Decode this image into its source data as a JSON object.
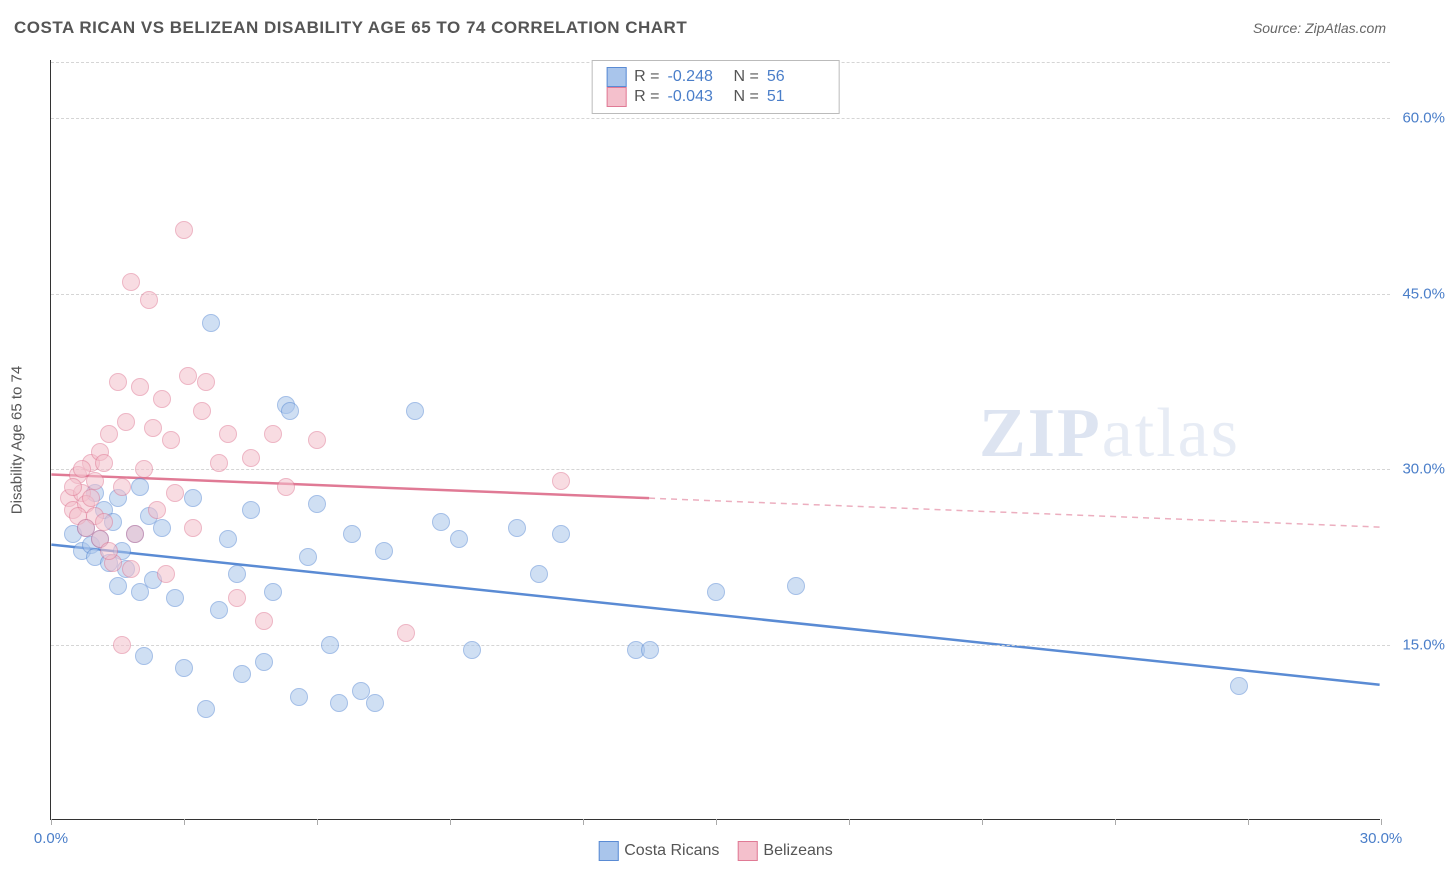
{
  "title": "COSTA RICAN VS BELIZEAN DISABILITY AGE 65 TO 74 CORRELATION CHART",
  "source": "Source: ZipAtlas.com",
  "ylabel": "Disability Age 65 to 74",
  "watermark_a": "ZIP",
  "watermark_b": "atlas",
  "chart": {
    "type": "scatter",
    "xlim": [
      0,
      30
    ],
    "ylim": [
      0,
      65
    ],
    "xticks": [
      0,
      3,
      6,
      9,
      12,
      15,
      18,
      21,
      24,
      27,
      30
    ],
    "xtick_labels": {
      "0": "0.0%",
      "30": "30.0%"
    },
    "yticks": [
      15,
      30,
      45,
      60
    ],
    "ytick_labels": {
      "15": "15.0%",
      "30": "30.0%",
      "45": "45.0%",
      "60": "60.0%"
    },
    "grid_color": "#d5d5d5",
    "background_color": "#ffffff",
    "point_radius": 9,
    "point_opacity": 0.55,
    "axis_label_color": "#4a7ec9",
    "series": [
      {
        "name": "Costa Ricans",
        "fill": "#a9c5eb",
        "stroke": "#5a8bd4",
        "trend": {
          "y_at_x0": 23.5,
          "y_at_x30": 11.5,
          "x_solid_end": 30
        },
        "R": "-0.248",
        "N": "56",
        "points": [
          [
            0.5,
            24.5
          ],
          [
            0.7,
            23.0
          ],
          [
            0.8,
            25.0
          ],
          [
            0.9,
            23.5
          ],
          [
            1.0,
            22.5
          ],
          [
            1.1,
            24.0
          ],
          [
            1.2,
            26.5
          ],
          [
            1.3,
            22.0
          ],
          [
            1.4,
            25.5
          ],
          [
            1.5,
            27.5
          ],
          [
            1.6,
            23.0
          ],
          [
            1.7,
            21.5
          ],
          [
            1.9,
            24.5
          ],
          [
            2.0,
            19.5
          ],
          [
            2.1,
            14.0
          ],
          [
            2.2,
            26.0
          ],
          [
            2.3,
            20.5
          ],
          [
            2.5,
            25.0
          ],
          [
            2.8,
            19.0
          ],
          [
            3.0,
            13.0
          ],
          [
            3.2,
            27.5
          ],
          [
            3.5,
            9.5
          ],
          [
            3.6,
            42.5
          ],
          [
            3.8,
            18.0
          ],
          [
            4.0,
            24.0
          ],
          [
            4.2,
            21.0
          ],
          [
            4.3,
            12.5
          ],
          [
            4.5,
            26.5
          ],
          [
            4.8,
            13.5
          ],
          [
            5.0,
            19.5
          ],
          [
            5.3,
            35.5
          ],
          [
            5.4,
            35.0
          ],
          [
            5.6,
            10.5
          ],
          [
            5.8,
            22.5
          ],
          [
            6.0,
            27.0
          ],
          [
            6.3,
            15.0
          ],
          [
            6.5,
            10.0
          ],
          [
            6.8,
            24.5
          ],
          [
            7.0,
            11.0
          ],
          [
            7.3,
            10.0
          ],
          [
            7.5,
            23.0
          ],
          [
            8.2,
            35.0
          ],
          [
            8.8,
            25.5
          ],
          [
            9.2,
            24.0
          ],
          [
            9.5,
            14.5
          ],
          [
            10.5,
            25.0
          ],
          [
            11.0,
            21.0
          ],
          [
            11.5,
            24.5
          ],
          [
            13.2,
            14.5
          ],
          [
            13.5,
            14.5
          ],
          [
            15.0,
            19.5
          ],
          [
            16.8,
            20.0
          ],
          [
            26.8,
            11.5
          ],
          [
            1.0,
            28.0
          ],
          [
            2.0,
            28.5
          ],
          [
            1.5,
            20.0
          ]
        ]
      },
      {
        "name": "Belizeans",
        "fill": "#f4c0cc",
        "stroke": "#e07a95",
        "trend": {
          "y_at_x0": 29.5,
          "y_at_x30": 25.0,
          "x_solid_end": 13.5
        },
        "R": "-0.043",
        "N": "51",
        "points": [
          [
            0.4,
            27.5
          ],
          [
            0.5,
            26.5
          ],
          [
            0.6,
            29.5
          ],
          [
            0.7,
            28.0
          ],
          [
            0.8,
            27.0
          ],
          [
            0.9,
            30.5
          ],
          [
            1.0,
            26.0
          ],
          [
            1.1,
            31.5
          ],
          [
            1.2,
            25.5
          ],
          [
            1.3,
            33.0
          ],
          [
            1.4,
            22.0
          ],
          [
            1.5,
            37.5
          ],
          [
            1.6,
            28.5
          ],
          [
            1.7,
            34.0
          ],
          [
            1.8,
            46.0
          ],
          [
            1.9,
            24.5
          ],
          [
            2.0,
            37.0
          ],
          [
            2.1,
            30.0
          ],
          [
            2.2,
            44.5
          ],
          [
            2.3,
            33.5
          ],
          [
            2.4,
            26.5
          ],
          [
            2.5,
            36.0
          ],
          [
            2.6,
            21.0
          ],
          [
            2.7,
            32.5
          ],
          [
            2.8,
            28.0
          ],
          [
            3.0,
            50.5
          ],
          [
            3.1,
            38.0
          ],
          [
            3.2,
            25.0
          ],
          [
            3.4,
            35.0
          ],
          [
            3.5,
            37.5
          ],
          [
            3.8,
            30.5
          ],
          [
            4.0,
            33.0
          ],
          [
            4.2,
            19.0
          ],
          [
            4.5,
            31.0
          ],
          [
            4.8,
            17.0
          ],
          [
            5.0,
            33.0
          ],
          [
            5.3,
            28.5
          ],
          [
            6.0,
            32.5
          ],
          [
            8.0,
            16.0
          ],
          [
            11.5,
            29.0
          ],
          [
            0.5,
            28.5
          ],
          [
            0.6,
            26.0
          ],
          [
            0.7,
            30.0
          ],
          [
            0.8,
            25.0
          ],
          [
            0.9,
            27.5
          ],
          [
            1.0,
            29.0
          ],
          [
            1.1,
            24.0
          ],
          [
            1.2,
            30.5
          ],
          [
            1.3,
            23.0
          ],
          [
            1.6,
            15.0
          ],
          [
            1.8,
            21.5
          ]
        ]
      }
    ]
  },
  "legend_top": [
    {
      "series": 0,
      "R_label": "R =",
      "N_label": "N ="
    },
    {
      "series": 1,
      "R_label": "R =",
      "N_label": "N ="
    }
  ],
  "legend_bottom_series": [
    0,
    1
  ]
}
